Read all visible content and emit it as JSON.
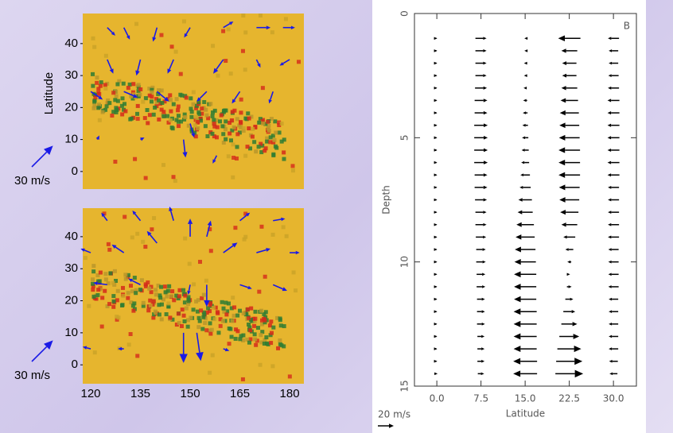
{
  "chart_data": [
    {
      "type": "quiver",
      "ylabel": "Latitude",
      "xlim": [
        117.6,
        184.3
      ],
      "ylim": [
        -5.5,
        49.4
      ],
      "yticks": [
        0,
        10,
        20,
        30,
        40
      ],
      "color": "#1a1ae6",
      "scale": {
        "value": 30,
        "label": "30 m/s"
      },
      "x": [
        125,
        130,
        140,
        150,
        160,
        170,
        178,
        125,
        135,
        145,
        160,
        170,
        180,
        120,
        130,
        140,
        155,
        165,
        175,
        122,
        135,
        150,
        148,
        158
      ],
      "y": [
        45,
        45,
        45,
        45,
        45,
        45,
        45,
        35,
        35,
        35,
        35,
        35,
        35,
        25,
        25,
        25,
        25,
        25,
        25,
        10,
        10,
        15,
        10,
        5
      ],
      "u": [
        8,
        6,
        -4,
        -6,
        10,
        14,
        12,
        6,
        -4,
        -6,
        -10,
        4,
        -10,
        12,
        14,
        12,
        -10,
        -8,
        -4,
        2,
        4,
        4,
        2,
        -4
      ],
      "v": [
        -8,
        -12,
        -14,
        -10,
        6,
        0,
        0,
        -14,
        -16,
        -14,
        -14,
        -8,
        -6,
        -8,
        -6,
        -10,
        -10,
        -12,
        -12,
        4,
        2,
        -14,
        -18,
        -8
      ]
    },
    {
      "type": "quiver",
      "xlim": [
        117.6,
        184.3
      ],
      "ylim": [
        -5.9,
        48.9
      ],
      "yticks": [
        0,
        10,
        20,
        30,
        40
      ],
      "xticks": [
        120,
        135,
        150,
        165,
        180
      ],
      "color": "#1a1ae6",
      "scale": {
        "value": 30,
        "label": "30 m/s"
      },
      "x": [
        125,
        135,
        145,
        150,
        155,
        165,
        175,
        120,
        130,
        140,
        160,
        170,
        180,
        125,
        135,
        150,
        155,
        165,
        175,
        120,
        130,
        148,
        152,
        160
      ],
      "y": [
        45,
        45,
        45,
        40,
        40,
        45,
        45,
        35,
        35,
        38,
        35,
        35,
        35,
        25,
        25,
        25,
        25,
        25,
        25,
        5,
        5,
        10,
        10,
        5
      ],
      "u": [
        -6,
        -8,
        -4,
        0,
        4,
        10,
        12,
        -10,
        -12,
        -10,
        14,
        14,
        10,
        -14,
        -12,
        -2,
        0,
        12,
        14,
        -8,
        -6,
        0,
        4,
        6
      ],
      "v": [
        8,
        10,
        14,
        18,
        16,
        8,
        2,
        4,
        8,
        12,
        10,
        4,
        0,
        2,
        6,
        -10,
        -22,
        -4,
        -6,
        2,
        0,
        -30,
        -28,
        -2
      ]
    },
    {
      "type": "quiver_columns",
      "panel_label": "B",
      "xlabel": "Latitude",
      "ylabel": "Depth",
      "xlim": [
        -3.8,
        33.9
      ],
      "ylim": [
        0,
        15
      ],
      "inverted": true,
      "color": "#000000",
      "xticks": [
        {
          "value": 0,
          "label": "0.0"
        },
        {
          "value": 7.5,
          "label": "7.5"
        },
        {
          "value": 15,
          "label": "15.0"
        },
        {
          "value": 22.5,
          "label": "22.5"
        },
        {
          "value": 30,
          "label": "30.0"
        }
      ],
      "yticks": [
        0,
        5,
        10,
        15
      ],
      "scale": {
        "value": 20,
        "label": "20 m/s"
      },
      "y": [
        1,
        1.5,
        2,
        2.5,
        3,
        3.5,
        4,
        4.5,
        5,
        5.5,
        6,
        6.5,
        7,
        7.5,
        8,
        8.5,
        9,
        9.5,
        10,
        10.5,
        11,
        11.5,
        12,
        12.5,
        13,
        13.5,
        14,
        14.5
      ],
      "columns": [
        {
          "x": 0,
          "u": [
            1,
            1,
            1,
            1,
            1,
            1,
            1,
            1,
            1,
            1,
            1,
            1,
            1,
            1,
            1,
            1,
            1,
            1,
            1,
            1,
            1,
            1,
            1,
            1,
            1,
            1,
            1,
            2
          ]
        },
        {
          "x": 7.5,
          "u": [
            14,
            14,
            14,
            14,
            15,
            16,
            16,
            17,
            17,
            17,
            17,
            16,
            16,
            15,
            14,
            14,
            13,
            12,
            12,
            11,
            11,
            10,
            10,
            10,
            9,
            9,
            9,
            8
          ]
        },
        {
          "x": 15,
          "u": [
            -2,
            -2,
            -3,
            -3,
            -4,
            -5,
            -6,
            -7,
            -8,
            -9,
            -10,
            -12,
            -14,
            -17,
            -19,
            -22,
            -24,
            -26,
            -27,
            -28,
            -28,
            -28,
            -29,
            -29,
            -29,
            -29,
            -30,
            -30
          ]
        },
        {
          "x": 22.5,
          "u": [
            -28,
            -20,
            -18,
            -18,
            -20,
            -22,
            -24,
            -25,
            -26,
            -27,
            -27,
            -27,
            -26,
            -25,
            -23,
            -20,
            -15,
            -10,
            -5,
            2,
            6,
            10,
            15,
            20,
            25,
            30,
            33,
            35
          ]
        },
        {
          "x": 30,
          "u": [
            -14,
            -12,
            -12,
            -13,
            -14,
            -15,
            -15,
            -15,
            -15,
            -15,
            -15,
            -15,
            -14,
            -14,
            -14,
            -14,
            -14,
            -13,
            -13,
            -13,
            -13,
            -12,
            -12,
            -12,
            -12,
            -12,
            -11,
            -10
          ]
        }
      ]
    }
  ]
}
